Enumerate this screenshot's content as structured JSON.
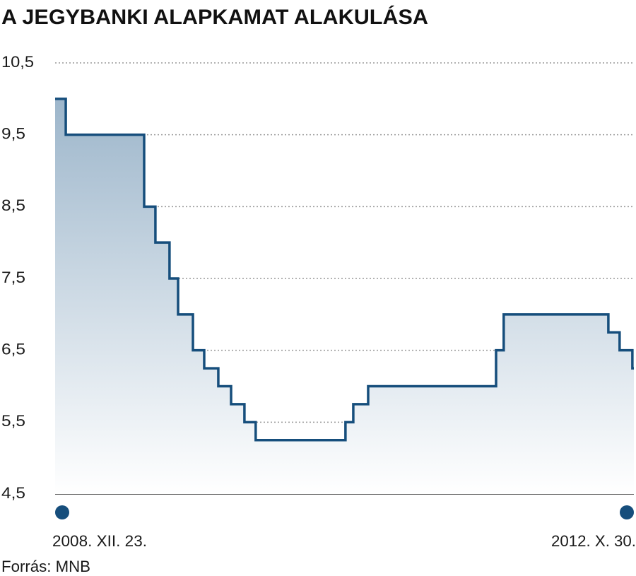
{
  "chart_data": {
    "type": "step",
    "title": "A JEGYBANKI ALAPKAMAT ALAKULÁSA",
    "source": "Forrás: MNB",
    "x": [
      2008.975,
      2009.046,
      2009.568,
      2009.643,
      2009.737,
      2009.794,
      2009.893,
      2009.968,
      2010.062,
      2010.147,
      2010.236,
      2010.311,
      2010.909,
      2010.961,
      2011.06,
      2011.912,
      2011.963,
      2012.66,
      2012.735,
      2012.82,
      2012.83
    ],
    "values": [
      10,
      9.5,
      8.5,
      8,
      7.5,
      7,
      6.5,
      6.25,
      6,
      5.75,
      5.5,
      5.25,
      5.5,
      5.75,
      6,
      6.5,
      7,
      6.75,
      6.5,
      6.25,
      6.25
    ],
    "color": "#164e7c",
    "xlim": [
      2008.975,
      2012.83
    ],
    "xticks": [
      {
        "value": 2008.975,
        "label": "2008. XII. 23."
      },
      {
        "value": 2012.83,
        "label": "2012. X. 30."
      }
    ],
    "ylim": [
      4.5,
      10.5
    ],
    "yticks": [
      {
        "value": 4.5,
        "label": "4,5"
      },
      {
        "value": 5.5,
        "label": "5,5"
      },
      {
        "value": 6.5,
        "label": "6,5"
      },
      {
        "value": 7.5,
        "label": "7,5"
      },
      {
        "value": 8.5,
        "label": "8,5"
      },
      {
        "value": 9.5,
        "label": "9,5"
      },
      {
        "value": 10.5,
        "label": "10,5"
      }
    ],
    "grid": true
  }
}
